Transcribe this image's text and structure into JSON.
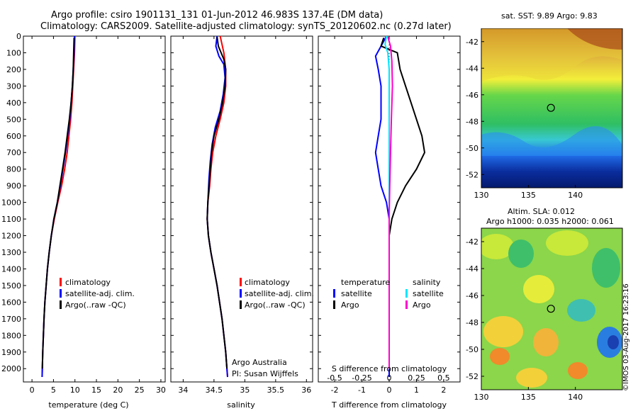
{
  "header": {
    "title_line1": "Argo profile: csiro 1901131_131 01-Jun-2012 46.983S 137.4E (DM data)",
    "title_line2": "Climatology: CARS2009. Satellite-adjusted climatology: synTS_20120602.nc (0.27d later)"
  },
  "colors": {
    "climatology": "#ff0000",
    "satellite": "#0000ff",
    "argo": "#000000",
    "sal_satellite": "#00e5ff",
    "sal_argo": "#ff00cc",
    "marker": "#000000"
  },
  "chart_data": [
    {
      "type": "line",
      "name": "temperature",
      "xlabel": "temperature (deg C)",
      "ylabel": "",
      "xlim": [
        -2,
        31
      ],
      "ylim": [
        2080,
        0
      ],
      "xticks": [
        0,
        5,
        10,
        15,
        20,
        25,
        30
      ],
      "yticks": [
        0,
        100,
        200,
        300,
        400,
        500,
        600,
        700,
        800,
        900,
        1000,
        1100,
        1200,
        1300,
        1400,
        1500,
        1600,
        1700,
        1800,
        1900,
        2000
      ],
      "legend": [
        "climatology",
        "satellite-adj. clim.",
        "Argo(..raw -QC)"
      ],
      "legend_position": "lower-middle",
      "series": [
        {
          "name": "climatology",
          "color": "#ff0000",
          "points": [
            [
              10.0,
              0
            ],
            [
              9.9,
              100
            ],
            [
              9.7,
              200
            ],
            [
              9.5,
              300
            ],
            [
              9.3,
              400
            ],
            [
              9.0,
              500
            ],
            [
              8.6,
              600
            ],
            [
              8.2,
              700
            ],
            [
              7.6,
              800
            ],
            [
              6.9,
              900
            ],
            [
              6.0,
              1000
            ],
            [
              5.2,
              1100
            ],
            [
              4.5,
              1200
            ],
            [
              4.0,
              1300
            ],
            [
              3.6,
              1400
            ],
            [
              3.3,
              1500
            ],
            [
              3.0,
              1600
            ],
            [
              2.8,
              1700
            ],
            [
              2.65,
              1800
            ],
            [
              2.5,
              1900
            ],
            [
              2.4,
              2000
            ],
            [
              2.35,
              2050
            ]
          ]
        },
        {
          "name": "satellite-adj. clim.",
          "color": "#0000ff",
          "points": [
            [
              9.9,
              0
            ],
            [
              9.8,
              100
            ],
            [
              9.6,
              200
            ],
            [
              9.4,
              300
            ],
            [
              9.1,
              400
            ],
            [
              8.8,
              500
            ],
            [
              8.3,
              600
            ],
            [
              7.8,
              700
            ],
            [
              7.2,
              800
            ],
            [
              6.6,
              900
            ],
            [
              5.9,
              1000
            ],
            [
              5.1,
              1100
            ],
            [
              4.5,
              1200
            ],
            [
              4.0,
              1300
            ],
            [
              3.6,
              1400
            ],
            [
              3.3,
              1500
            ],
            [
              3.0,
              1600
            ],
            [
              2.8,
              1700
            ],
            [
              2.65,
              1800
            ],
            [
              2.5,
              1900
            ],
            [
              2.4,
              2000
            ],
            [
              2.35,
              2050
            ]
          ]
        },
        {
          "name": "Argo(..raw -QC)",
          "color": "#000000",
          "points": [
            [
              9.8,
              10
            ],
            [
              9.7,
              100
            ],
            [
              9.6,
              200
            ],
            [
              9.4,
              300
            ],
            [
              9.1,
              400
            ],
            [
              8.7,
              500
            ],
            [
              8.2,
              600
            ],
            [
              7.7,
              700
            ],
            [
              7.1,
              800
            ],
            [
              6.5,
              900
            ],
            [
              5.9,
              1000
            ],
            [
              5.1,
              1100
            ],
            [
              4.5,
              1200
            ],
            [
              4.0,
              1300
            ],
            [
              3.6,
              1400
            ],
            [
              3.3,
              1500
            ],
            [
              3.0,
              1600
            ],
            [
              2.8,
              1700
            ],
            [
              2.65,
              1800
            ],
            [
              2.5,
              1900
            ],
            [
              2.4,
              2000
            ]
          ]
        }
      ]
    },
    {
      "type": "line",
      "name": "salinity",
      "xlabel": "salinity",
      "xlim": [
        33.8,
        36.1
      ],
      "ylim": [
        2080,
        0
      ],
      "xticks": [
        34,
        34.5,
        35,
        35.5,
        36
      ],
      "legend": [
        "climatology",
        "satellite-adj. clim.",
        "Argo(..raw -QC)"
      ],
      "legend_position": "lower-middle",
      "annotations": [
        "Argo Australia",
        "PI: Susan Wijffels"
      ],
      "series": [
        {
          "name": "climatology",
          "color": "#ff0000",
          "points": [
            [
              34.6,
              0
            ],
            [
              34.63,
              50
            ],
            [
              34.66,
              100
            ],
            [
              34.69,
              200
            ],
            [
              34.69,
              300
            ],
            [
              34.66,
              400
            ],
            [
              34.6,
              500
            ],
            [
              34.53,
              600
            ],
            [
              34.48,
              700
            ],
            [
              34.45,
              800
            ],
            [
              34.43,
              900
            ],
            [
              34.4,
              1000
            ],
            [
              34.39,
              1100
            ],
            [
              34.41,
              1200
            ],
            [
              34.45,
              1300
            ],
            [
              34.5,
              1400
            ],
            [
              34.55,
              1500
            ],
            [
              34.59,
              1600
            ],
            [
              34.63,
              1700
            ],
            [
              34.66,
              1800
            ],
            [
              34.69,
              1900
            ],
            [
              34.71,
              2000
            ],
            [
              34.72,
              2050
            ]
          ]
        },
        {
          "name": "satellite-adj. clim.",
          "color": "#0000ff",
          "points": [
            [
              34.55,
              0
            ],
            [
              34.53,
              60
            ],
            [
              34.58,
              120
            ],
            [
              34.66,
              170
            ],
            [
              34.68,
              250
            ],
            [
              34.65,
              350
            ],
            [
              34.6,
              450
            ],
            [
              34.52,
              550
            ],
            [
              34.47,
              650
            ],
            [
              34.44,
              750
            ],
            [
              34.42,
              850
            ],
            [
              34.4,
              1000
            ],
            [
              34.39,
              1100
            ],
            [
              34.41,
              1200
            ],
            [
              34.45,
              1300
            ],
            [
              34.5,
              1400
            ],
            [
              34.55,
              1500
            ],
            [
              34.59,
              1600
            ],
            [
              34.63,
              1700
            ],
            [
              34.66,
              1800
            ],
            [
              34.69,
              1900
            ],
            [
              34.71,
              2000
            ],
            [
              34.72,
              2050
            ]
          ]
        },
        {
          "name": "Argo(..raw -QC)",
          "color": "#000000",
          "points": [
            [
              34.55,
              5
            ],
            [
              34.57,
              60
            ],
            [
              34.66,
              140
            ],
            [
              34.69,
              200
            ],
            [
              34.68,
              300
            ],
            [
              34.64,
              400
            ],
            [
              34.58,
              500
            ],
            [
              34.5,
              600
            ],
            [
              34.46,
              700
            ],
            [
              34.44,
              800
            ],
            [
              34.42,
              900
            ],
            [
              34.4,
              1000
            ],
            [
              34.39,
              1100
            ],
            [
              34.41,
              1200
            ],
            [
              34.45,
              1300
            ],
            [
              34.5,
              1400
            ],
            [
              34.55,
              1500
            ],
            [
              34.59,
              1600
            ],
            [
              34.63,
              1700
            ],
            [
              34.66,
              1800
            ],
            [
              34.69,
              1900
            ],
            [
              34.71,
              2000
            ]
          ]
        }
      ]
    },
    {
      "type": "line",
      "name": "difference",
      "xlabel": "T difference from climatology",
      "xlabel2": "S difference from climatology",
      "xlim": [
        -2.6,
        2.6
      ],
      "ylim": [
        2080,
        0
      ],
      "xticks": [
        -2,
        -1,
        0,
        1,
        2
      ],
      "xtick_labels": [
        "-2",
        "-1",
        "0",
        "1",
        "2"
      ],
      "xticks2": [
        -0.5,
        -0.25,
        0,
        0.25,
        0.5
      ],
      "xtick2_labels": [
        "-0.5",
        "-0.25",
        "0",
        "0.25",
        "0.5"
      ],
      "legend_temperature": [
        "temperature",
        "satellite",
        "Argo"
      ],
      "legend_salinity": [
        "salinity",
        "satellite",
        "Argo"
      ],
      "series": [
        {
          "name": "temperature satellite",
          "color": "#0000ff",
          "points": [
            [
              -0.1,
              0
            ],
            [
              -0.3,
              60
            ],
            [
              -0.5,
              120
            ],
            [
              -0.4,
              200
            ],
            [
              -0.3,
              300
            ],
            [
              -0.3,
              400
            ],
            [
              -0.3,
              500
            ],
            [
              -0.4,
              600
            ],
            [
              -0.5,
              700
            ],
            [
              -0.4,
              800
            ],
            [
              -0.3,
              900
            ],
            [
              -0.1,
              1000
            ],
            [
              0.0,
              1100
            ],
            [
              0.0,
              1200
            ],
            [
              0.0,
              1400
            ],
            [
              0.0,
              1600
            ],
            [
              0.0,
              1800
            ],
            [
              0.0,
              2000
            ],
            [
              0.0,
              2050
            ]
          ]
        },
        {
          "name": "temperature Argo",
          "color": "#000000",
          "points": [
            [
              -0.2,
              10
            ],
            [
              -0.3,
              60
            ],
            [
              0.3,
              100
            ],
            [
              0.4,
              200
            ],
            [
              0.6,
              300
            ],
            [
              0.8,
              400
            ],
            [
              1.0,
              500
            ],
            [
              1.2,
              600
            ],
            [
              1.3,
              700
            ],
            [
              1.0,
              800
            ],
            [
              0.6,
              900
            ],
            [
              0.3,
              1000
            ],
            [
              0.1,
              1100
            ],
            [
              0.0,
              1200
            ],
            [
              0.0,
              1400
            ],
            [
              0.0,
              1600
            ],
            [
              0.0,
              1800
            ],
            [
              0.0,
              2000
            ]
          ]
        },
        {
          "name": "salinity satellite",
          "color": "#00e5ff",
          "points": [
            [
              -0.1,
              0
            ],
            [
              -0.15,
              50
            ],
            [
              -0.05,
              100
            ],
            [
              0.0,
              200
            ],
            [
              0.0,
              400
            ],
            [
              0.0,
              600
            ],
            [
              0.0,
              800
            ],
            [
              0.0,
              1000
            ],
            [
              0.0,
              1200
            ],
            [
              0.0,
              1400
            ],
            [
              0.0,
              1600
            ],
            [
              0.0,
              1800
            ],
            [
              0.0,
              2000
            ]
          ]
        },
        {
          "name": "salinity Argo",
          "color": "#ff00cc",
          "points": [
            [
              -0.05,
              5
            ],
            [
              0.05,
              60
            ],
            [
              0.1,
              150
            ],
            [
              0.12,
              300
            ],
            [
              0.08,
              500
            ],
            [
              0.05,
              700
            ],
            [
              0.02,
              900
            ],
            [
              0.0,
              1100
            ],
            [
              0.0,
              1300
            ],
            [
              0.0,
              1500
            ],
            [
              0.0,
              1700
            ],
            [
              0.0,
              1900
            ],
            [
              0.0,
              2000
            ]
          ]
        }
      ]
    },
    {
      "type": "heatmap",
      "name": "sst_map",
      "title": "sat. SST: 9.89 Argo: 9.83",
      "xlim": [
        130,
        145
      ],
      "ylim": [
        -53,
        -41
      ],
      "xticks": [
        130,
        135,
        140
      ],
      "yticks": [
        -42,
        -44,
        -46,
        -48,
        -50,
        -52
      ],
      "marker": {
        "lon": 137.4,
        "lat": -46.983
      }
    },
    {
      "type": "heatmap",
      "name": "sla_map",
      "title": "Altim. SLA: 0.012",
      "subtitle": "Argo h1000: 0.035 h2000: 0.061",
      "xlim": [
        130,
        145
      ],
      "ylim": [
        -53,
        -41
      ],
      "xticks": [
        130,
        135,
        140
      ],
      "yticks": [
        -42,
        -44,
        -46,
        -48,
        -50,
        -52
      ],
      "marker": {
        "lon": 137.4,
        "lat": -46.983
      }
    }
  ],
  "footer": {
    "stamp": "©IMOS 03-Aug-2017 16:23:16"
  }
}
